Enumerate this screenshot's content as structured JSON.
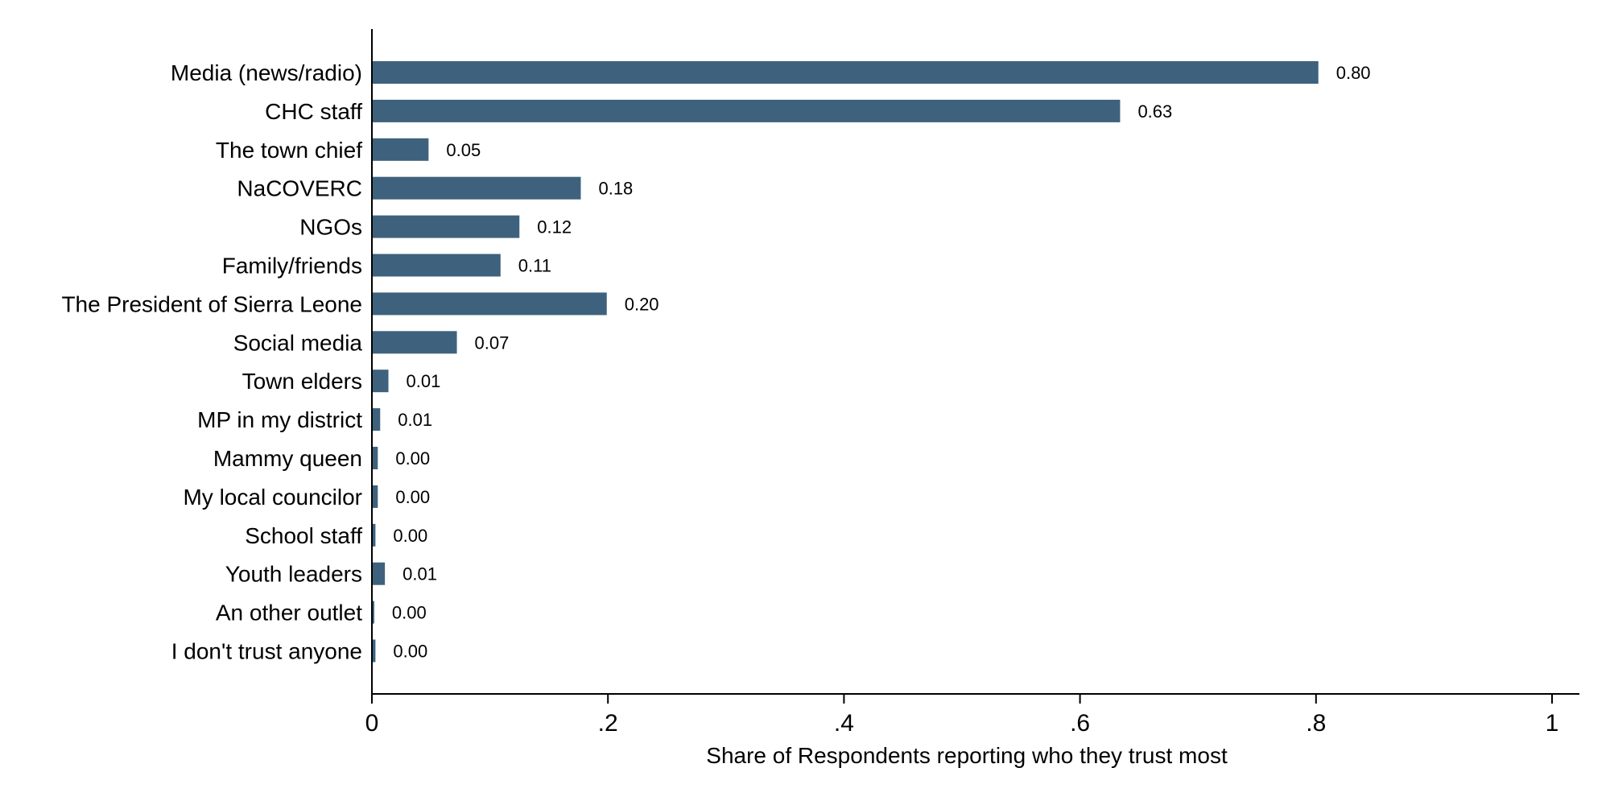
{
  "chart_data": {
    "type": "bar",
    "orientation": "horizontal",
    "categories": [
      "Media (news/radio)",
      "CHC staff",
      "The town chief",
      "NaCOVERC",
      "NGOs",
      "Family/friends",
      "The President of Sierra Leone",
      "Social media",
      "Town elders",
      "MP in my district",
      "Mammy queen",
      "My local councilor",
      "School staff",
      "Youth leaders",
      "An other outlet",
      "I don't trust anyone"
    ],
    "values": [
      0.802,
      0.634,
      0.048,
      0.177,
      0.125,
      0.109,
      0.199,
      0.072,
      0.014,
      0.007,
      0.005,
      0.005,
      0.003,
      0.011,
      0.002,
      0.003
    ],
    "value_labels": [
      "0.80",
      "0.63",
      "0.05",
      "0.18",
      "0.12",
      "0.11",
      "0.20",
      "0.07",
      "0.01",
      "0.01",
      "0.00",
      "0.00",
      "0.00",
      "0.01",
      "0.00",
      "0.00"
    ],
    "xlabel": "Share of Respondents reporting who they trust most",
    "xlim": [
      0,
      1
    ],
    "xticks": [
      0,
      0.2,
      0.4,
      0.6,
      0.8,
      1
    ],
    "xtick_labels": [
      "0",
      ".2",
      ".4",
      ".6",
      ".8",
      "1"
    ],
    "grid": false,
    "bar_color": "#3e627d"
  }
}
